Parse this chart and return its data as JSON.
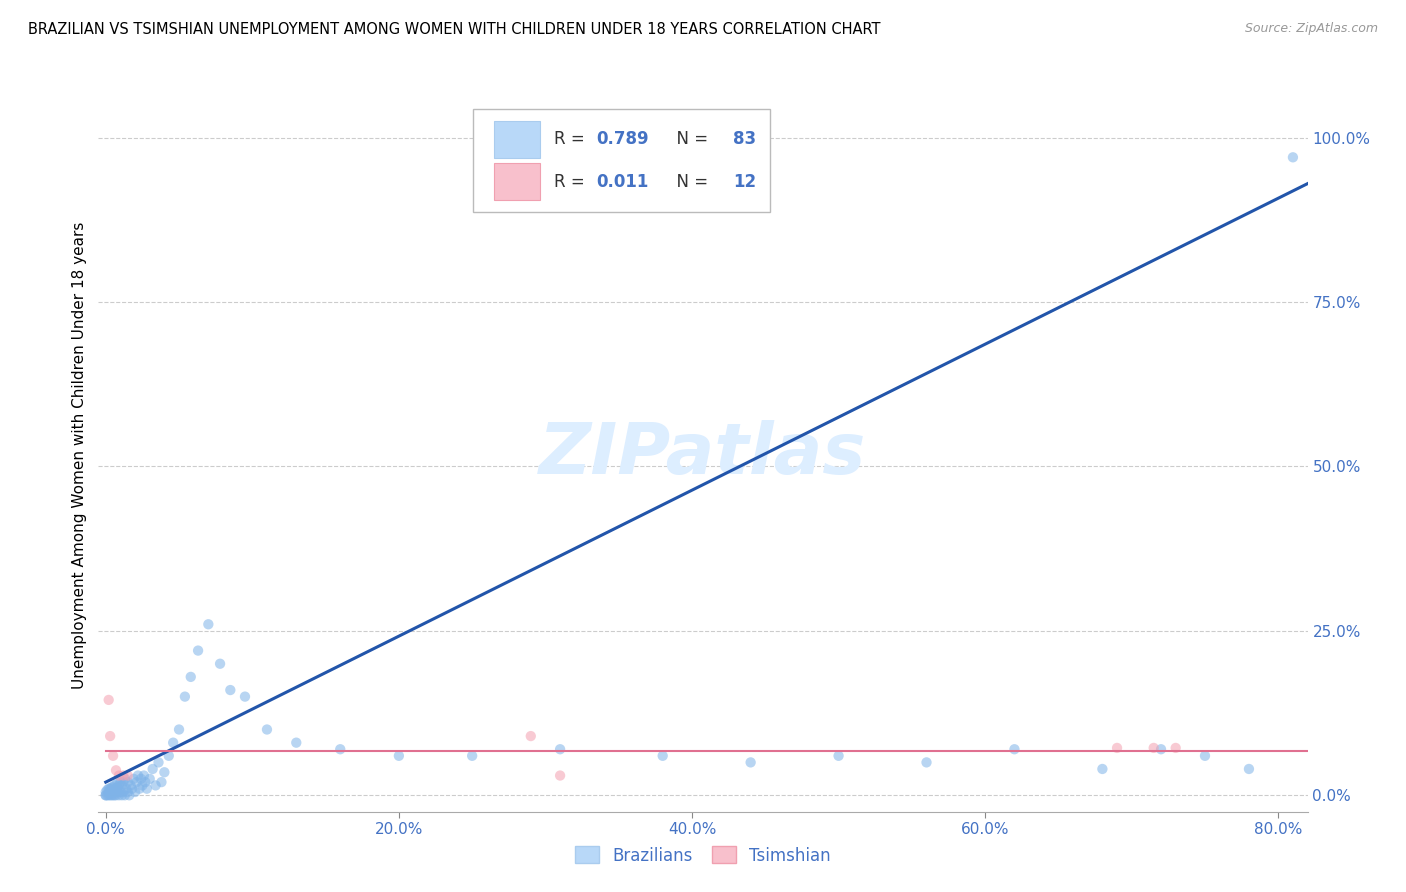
{
  "title": "BRAZILIAN VS TSIMSHIAN UNEMPLOYMENT AMONG WOMEN WITH CHILDREN UNDER 18 YEARS CORRELATION CHART",
  "source": "Source: ZipAtlas.com",
  "ylabel": "Unemployment Among Women with Children Under 18 years",
  "xlim": [
    -0.005,
    0.82
  ],
  "ylim": [
    -0.025,
    1.06
  ],
  "watermark": "ZIPatlas",
  "blue_scatter_x": [
    0.0,
    0.0,
    0.0,
    0.001,
    0.001,
    0.002,
    0.002,
    0.002,
    0.003,
    0.003,
    0.003,
    0.004,
    0.004,
    0.004,
    0.005,
    0.005,
    0.005,
    0.006,
    0.006,
    0.006,
    0.007,
    0.007,
    0.008,
    0.008,
    0.008,
    0.009,
    0.009,
    0.01,
    0.01,
    0.011,
    0.011,
    0.012,
    0.012,
    0.013,
    0.013,
    0.014,
    0.015,
    0.015,
    0.016,
    0.017,
    0.018,
    0.019,
    0.02,
    0.021,
    0.022,
    0.023,
    0.024,
    0.025,
    0.026,
    0.027,
    0.028,
    0.03,
    0.032,
    0.034,
    0.036,
    0.038,
    0.04,
    0.043,
    0.046,
    0.05,
    0.054,
    0.058,
    0.063,
    0.07,
    0.078,
    0.085,
    0.095,
    0.11,
    0.13,
    0.16,
    0.2,
    0.25,
    0.31,
    0.38,
    0.44,
    0.5,
    0.56,
    0.62,
    0.68,
    0.72,
    0.75,
    0.78,
    0.81
  ],
  "blue_scatter_y": [
    0.0,
    0.0,
    0.005,
    0.0,
    0.008,
    0.0,
    0.005,
    0.01,
    0.0,
    0.005,
    0.01,
    0.0,
    0.005,
    0.012,
    0.0,
    0.005,
    0.012,
    0.0,
    0.008,
    0.015,
    0.0,
    0.01,
    0.005,
    0.012,
    0.02,
    0.0,
    0.015,
    0.005,
    0.02,
    0.0,
    0.015,
    0.005,
    0.02,
    0.0,
    0.025,
    0.01,
    0.005,
    0.02,
    0.0,
    0.015,
    0.01,
    0.025,
    0.005,
    0.02,
    0.03,
    0.01,
    0.025,
    0.015,
    0.03,
    0.02,
    0.01,
    0.025,
    0.04,
    0.015,
    0.05,
    0.02,
    0.035,
    0.06,
    0.08,
    0.1,
    0.15,
    0.18,
    0.22,
    0.26,
    0.2,
    0.16,
    0.15,
    0.1,
    0.08,
    0.07,
    0.06,
    0.06,
    0.07,
    0.06,
    0.05,
    0.06,
    0.05,
    0.07,
    0.04,
    0.07,
    0.06,
    0.04,
    0.97
  ],
  "pink_scatter_x": [
    0.002,
    0.003,
    0.005,
    0.007,
    0.009,
    0.012,
    0.015,
    0.29,
    0.31,
    0.69,
    0.715,
    0.73
  ],
  "pink_scatter_y": [
    0.145,
    0.09,
    0.06,
    0.038,
    0.03,
    0.03,
    0.03,
    0.09,
    0.03,
    0.072,
    0.072,
    0.072
  ],
  "blue_line_x": [
    0.0,
    0.82
  ],
  "blue_line_y": [
    0.02,
    0.93
  ],
  "pink_line_x": [
    0.0,
    0.82
  ],
  "pink_line_y": [
    0.068,
    0.068
  ],
  "scatter_color_blue": "#7fb3e8",
  "scatter_color_pink": "#f4a0b0",
  "line_color_blue": "#2255aa",
  "line_color_pink": "#e07090",
  "grid_color": "#cccccc",
  "background_color": "#ffffff",
  "title_fontsize": 10.5,
  "source_fontsize": 9,
  "watermark_fontsize": 52,
  "watermark_color": "#ddeeff",
  "scatter_size": 55,
  "scatter_alpha": 0.55,
  "legend_R1": "0.789",
  "legend_N1": "83",
  "legend_R2": "0.011",
  "legend_N2": "12"
}
